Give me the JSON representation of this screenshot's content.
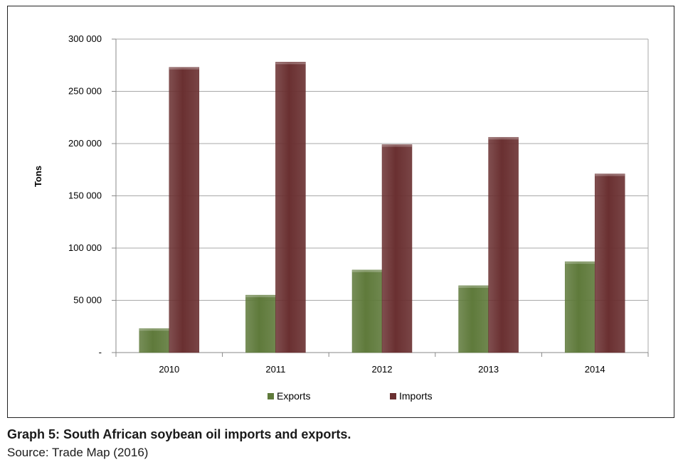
{
  "caption": {
    "title": "Graph 5: South African soybean oil imports and exports.",
    "source": "Source: Trade Map (2016)"
  },
  "chart_data": {
    "type": "bar",
    "categories": [
      "2010",
      "2011",
      "2012",
      "2013",
      "2014"
    ],
    "series": [
      {
        "name": "Exports",
        "values": [
          23000,
          55000,
          79000,
          64000,
          87000
        ],
        "color": "#5f7a3b"
      },
      {
        "name": "Imports",
        "values": [
          273000,
          278000,
          199000,
          206000,
          171000
        ],
        "color": "#6a3031"
      }
    ],
    "ylabel": "Tons",
    "ylim": [
      0,
      300000
    ],
    "yticks": [
      0,
      50000,
      100000,
      150000,
      200000,
      250000,
      300000
    ],
    "ytick_labels": [
      "-",
      "50 000",
      "100 000",
      "150 000",
      "200 000",
      "250 000",
      "300 000"
    ],
    "grid": true,
    "legend": "bottom"
  }
}
